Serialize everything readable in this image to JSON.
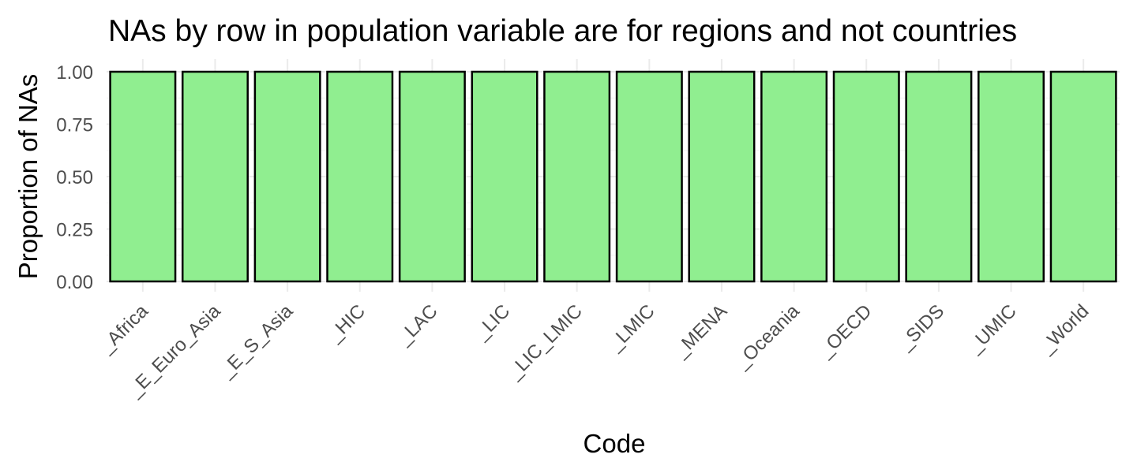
{
  "chart_data": {
    "type": "bar",
    "title": "NAs by row in population variable are for regions and not countries",
    "xlabel": "Code",
    "ylabel": "Proportion of NAs",
    "categories": [
      "_Africa",
      "_E_Euro_Asia",
      "_E_S_Asia",
      "_HIC",
      "_LAC",
      "_LIC",
      "_LIC_LMIC",
      "_LMIC",
      "_MENA",
      "_Oceania",
      "_OECD",
      "_SIDS",
      "_UMIC",
      "_World"
    ],
    "values": [
      1,
      1,
      1,
      1,
      1,
      1,
      1,
      1,
      1,
      1,
      1,
      1,
      1,
      1
    ],
    "ylim": [
      0,
      1
    ],
    "yticks": [
      "0.00",
      "0.25",
      "0.50",
      "0.75",
      "1.00"
    ],
    "bar_fill": "#90ee90",
    "bar_outline": "#000000",
    "grid": true,
    "legend": "none"
  }
}
